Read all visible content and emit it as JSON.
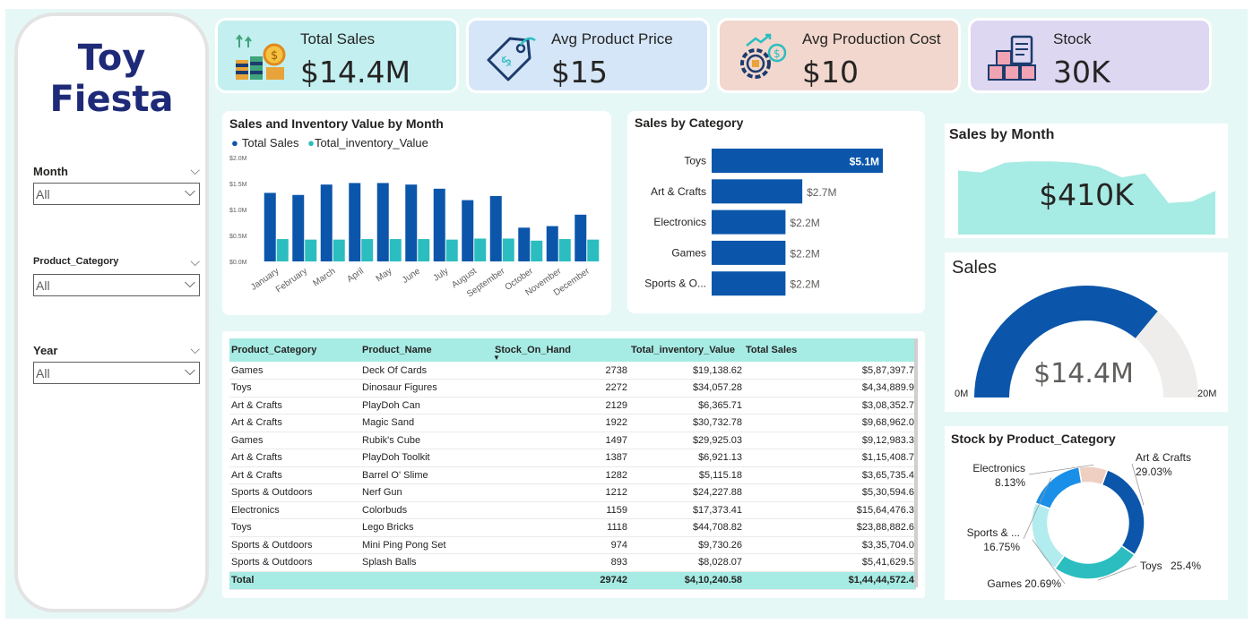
{
  "sidebar": {
    "logo_line1": "Toy",
    "logo_line2": "Fiesta",
    "slicers": [
      {
        "label": "Month",
        "value": "All"
      },
      {
        "label": "Product_Category",
        "value": "All"
      },
      {
        "label": "Year",
        "value": "All"
      }
    ]
  },
  "kpis": [
    {
      "label": "Total Sales",
      "value": "$14.4M",
      "bg": "#c3eff0",
      "icon": "coins-chart-icon"
    },
    {
      "label": "Avg Product Price",
      "value": "$15",
      "bg": "#d4e6f7",
      "icon": "price-tag-icon"
    },
    {
      "label": "Avg Production Cost",
      "value": "$10",
      "bg": "#f1d7cd",
      "icon": "gear-dollar-icon"
    },
    {
      "label": "Stock",
      "value": "30K",
      "bg": "#ddd7f1",
      "icon": "inventory-boxes-icon"
    }
  ],
  "colors": {
    "dark_blue": "#0b56aa",
    "teal": "#2bbdbf",
    "light_teal": "#a6ebe4",
    "gauge_bg": "#eeedec"
  },
  "chart_data": [
    {
      "type": "bar",
      "title": "Sales and Inventory Value by Month",
      "categories": [
        "January",
        "February",
        "March",
        "April",
        "May",
        "June",
        "July",
        "August",
        "September",
        "October",
        "November",
        "December"
      ],
      "series": [
        {
          "name": "Total Sales",
          "color": "#0b56aa",
          "values": [
            1.32,
            1.28,
            1.48,
            1.51,
            1.51,
            1.48,
            1.4,
            1.18,
            1.26,
            0.65,
            0.68,
            0.9
          ]
        },
        {
          "name": "Total_inventory_Value",
          "color": "#2bbdbf",
          "values": [
            0.43,
            0.42,
            0.42,
            0.43,
            0.43,
            0.43,
            0.42,
            0.44,
            0.44,
            0.4,
            0.43,
            0.42
          ]
        }
      ],
      "yticks": [
        "$0.0M",
        "$0.5M",
        "$1.0M",
        "$1.5M",
        "$2.0M"
      ],
      "ylim": [
        0,
        2.0
      ],
      "legend": "top-left"
    },
    {
      "type": "bar",
      "orientation": "horizontal",
      "title": "Sales by Category",
      "categories": [
        "Toys",
        "Art & Crafts",
        "Electronics",
        "Games",
        "Sports & O..."
      ],
      "values": [
        5.1,
        2.7,
        2.2,
        2.2,
        2.2
      ],
      "labels": [
        "$5.1M",
        "$2.7M",
        "$2.2M",
        "$2.2M",
        "$2.2M"
      ]
    },
    {
      "type": "area",
      "title": "Sales by Month",
      "value_label": "$410K",
      "values": [
        1.32,
        1.28,
        1.48,
        1.51,
        1.51,
        1.48,
        1.4,
        1.18,
        1.26,
        0.65,
        0.68,
        0.9
      ]
    },
    {
      "type": "gauge",
      "title": "Sales",
      "value": 14.4,
      "min": 0,
      "max": 20,
      "value_label": "$14.4M",
      "min_label": "0M",
      "max_label": "20M"
    },
    {
      "type": "pie",
      "title": "Stock by Product_Category",
      "slices": [
        {
          "name": "Art & Crafts",
          "pct": 29.03,
          "label_pct": "29.03%",
          "color": "#0b56aa"
        },
        {
          "name": "Toys",
          "pct": 25.4,
          "label_pct": "25.4%",
          "color": "#2bbdbf"
        },
        {
          "name": "Games",
          "pct": 20.69,
          "label_pct": "20.69%",
          "color": "#b3ecee"
        },
        {
          "name": "Sports & ...",
          "pct": 16.75,
          "label_pct": "16.75%",
          "color": "#1a8fe8"
        },
        {
          "name": "Electronics",
          "pct": 8.13,
          "label_pct": "8.13%",
          "color": "#efcfc2"
        }
      ]
    }
  ],
  "table": {
    "columns": [
      "Product_Category",
      "Product_Name",
      "Stock_On_Hand",
      "Total_inventory_Value",
      "Total Sales"
    ],
    "sort_indicator": "▼",
    "rows": [
      [
        "Games",
        "Deck Of Cards",
        "2738",
        "$19,138.62",
        "$5,87,397.7"
      ],
      [
        "Toys",
        "Dinosaur Figures",
        "2272",
        "$34,057.28",
        "$4,34,889.9"
      ],
      [
        "Art & Crafts",
        "PlayDoh Can",
        "2129",
        "$6,365.71",
        "$3,08,352.7"
      ],
      [
        "Art & Crafts",
        "Magic Sand",
        "1922",
        "$30,732.78",
        "$9,68,962.0"
      ],
      [
        "Games",
        "Rubik's Cube",
        "1497",
        "$29,925.03",
        "$9,12,983.3"
      ],
      [
        "Art & Crafts",
        "PlayDoh Toolkit",
        "1387",
        "$6,921.13",
        "$1,15,408.7"
      ],
      [
        "Art & Crafts",
        "Barrel O' Slime",
        "1282",
        "$5,115.18",
        "$3,65,735.4"
      ],
      [
        "Sports & Outdoors",
        "Nerf Gun",
        "1212",
        "$24,227.88",
        "$5,30,594.6"
      ],
      [
        "Electronics",
        "Colorbuds",
        "1159",
        "$17,373.41",
        "$15,64,476.3"
      ],
      [
        "Toys",
        "Lego Bricks",
        "1118",
        "$44,708.82",
        "$23,88,882.6"
      ],
      [
        "Sports & Outdoors",
        "Mini Ping Pong Set",
        "974",
        "$9,730.26",
        "$3,35,704.0"
      ],
      [
        "Sports & Outdoors",
        "Splash Balls",
        "893",
        "$8,028.07",
        "$5,41,629.5"
      ]
    ],
    "total": [
      "Total",
      "",
      "29742",
      "$4,10,240.58",
      "$1,44,44,572.4"
    ]
  }
}
